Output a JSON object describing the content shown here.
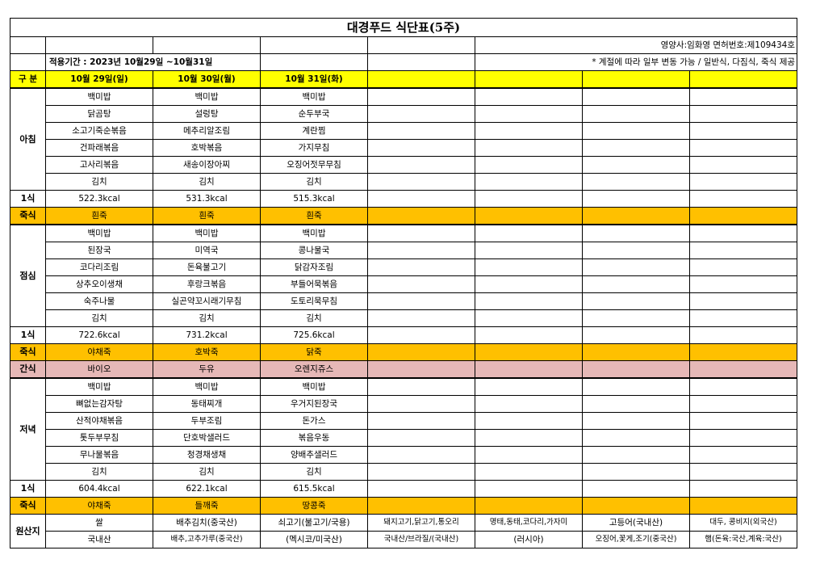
{
  "title": "대경푸드 식단표(5주)",
  "dietitian": "영양사:임화영  면허번호:제109434호",
  "period": "적용기간 : 2023년 10월29일 ~10월31일",
  "note": "* 계절에 따라 일부 변동 가능 / 일반식, 다짐식, 죽식 제공",
  "header": {
    "label": "구 분",
    "days": [
      "10월 29일(일)",
      "10월 30일(월)",
      "10월 31일(화)",
      "",
      "",
      "",
      "",
      ""
    ]
  },
  "breakfast": {
    "label": "아침",
    "count": "1식",
    "rows": [
      [
        "백미밥",
        "백미밥",
        "백미밥"
      ],
      [
        "닭곰탕",
        "설렁탕",
        "순두부국"
      ],
      [
        "소고기죽순볶음",
        "메추리알조림",
        "계란찜"
      ],
      [
        "건파래볶음",
        "호박볶음",
        "가지무침"
      ],
      [
        "고사리볶음",
        "새송이장아찌",
        "오징어젓무무침"
      ],
      [
        "김치",
        "김치",
        "김치"
      ]
    ],
    "kcal": [
      "522.3kcal",
      "531.3kcal",
      "515.3kcal"
    ],
    "porridge_label": "죽식",
    "porridge": [
      "흰죽",
      "흰죽",
      "흰죽"
    ]
  },
  "lunch": {
    "label": "점심",
    "count": "1식",
    "rows": [
      [
        "백미밥",
        "백미밥",
        "백미밥"
      ],
      [
        "된장국",
        "미역국",
        "콩나물국"
      ],
      [
        "코다리조림",
        "돈육불고기",
        "닭감자조림"
      ],
      [
        "상추오이생채",
        "후랑크볶음",
        "부들어묵볶음"
      ],
      [
        "숙주나물",
        "실곤약꼬시래기무침",
        "도토리묵무침"
      ],
      [
        "김치",
        "김치",
        "김치"
      ]
    ],
    "kcal": [
      "722.6kcal",
      "731.2kcal",
      "725.6kcal"
    ],
    "porridge_label": "죽식",
    "porridge": [
      "야채죽",
      "호박죽",
      "닭죽"
    ]
  },
  "snack": {
    "label": "간식",
    "items": [
      "바이오",
      "두유",
      "오렌지쥬스"
    ]
  },
  "dinner": {
    "label": "저녁",
    "count": "1식",
    "rows": [
      [
        "백미밥",
        "백미밥",
        "백미밥"
      ],
      [
        "뼈없는감자탕",
        "동태찌개",
        "우거지된장국"
      ],
      [
        "산적야채볶음",
        "두부조림",
        "돈가스"
      ],
      [
        "톳두부무침",
        "단호박샐러드",
        "볶음우동"
      ],
      [
        "무나물볶음",
        "청경채생채",
        "양배추샐러드"
      ],
      [
        "김치",
        "김치",
        "김치"
      ]
    ],
    "kcal": [
      "604.4kcal",
      "622.1kcal",
      "615.5kcal"
    ],
    "porridge_label": "죽식",
    "porridge": [
      "야채죽",
      "들깨죽",
      "땅콩죽"
    ]
  },
  "origin": {
    "label": "원산지",
    "row1": [
      "쌀",
      "배추김치(중국산)",
      "쇠고기(불고기/국용)",
      "돼지고기,닭고기,통오리",
      "명태,동태,코다리,가자미",
      "고등어(국내산)",
      "대두, 콩비지(외국산)"
    ],
    "row2": [
      "국내산",
      "배추,고추가루(중국산)",
      "(멕시코/미국산)",
      "국내산/브라질/(국내산)",
      "(러시아)",
      "오징어,꽃게,조기(중국산)",
      "햄(돈육:국산,계육:국산)"
    ]
  },
  "colors": {
    "header": "#ffff00",
    "porridge": "#ffc000",
    "snack": "#e6b8b7"
  }
}
